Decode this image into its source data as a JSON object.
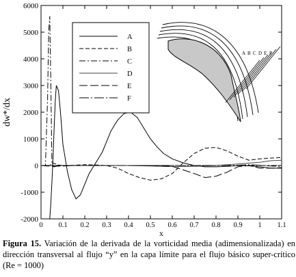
{
  "chart_data": {
    "type": "line",
    "xlabel": "x",
    "ylabel": "dw*/dx",
    "xlim": [
      0,
      1.1
    ],
    "ylim": [
      -2000,
      6000
    ],
    "x_ticks": [
      "0",
      "0.1",
      "0.2",
      "0.3",
      "0.4",
      "0.5",
      "0.6",
      "0.7",
      "0.8",
      "0.9",
      "1",
      "1.1"
    ],
    "y_ticks": [
      "-2000",
      "-1000",
      "0",
      "1000",
      "2000",
      "3000",
      "4000",
      "5000",
      "6000"
    ],
    "legend_position": "top-left",
    "inset_labels": [
      "A",
      "B",
      "C",
      "D",
      "E",
      "F"
    ],
    "series": [
      {
        "name": "A",
        "color": "#000000",
        "dash": "",
        "x": [
          0.04,
          0.045,
          0.05,
          0.055,
          0.06,
          0.065,
          0.07,
          0.08,
          0.09,
          0.1,
          0.12,
          0.14,
          0.16,
          0.18,
          0.2,
          0.22,
          0.25,
          0.28,
          0.3,
          0.32,
          0.35,
          0.38,
          0.41,
          0.44,
          0.47,
          0.5,
          0.53,
          0.56,
          0.6,
          0.65,
          0.7,
          0.75,
          0.8,
          0.85,
          0.9,
          0.95,
          1.0,
          1.05,
          1.1
        ],
        "y": [
          -2000,
          -1400,
          -600,
          300,
          1400,
          2400,
          3000,
          2800,
          1900,
          800,
          -200,
          -900,
          -1250,
          -1100,
          -700,
          -300,
          100,
          500,
          900,
          1300,
          1700,
          1950,
          2000,
          1800,
          1400,
          1000,
          700,
          450,
          250,
          100,
          0,
          -50,
          -50,
          -30,
          0,
          -10,
          -50,
          -100,
          -100
        ]
      },
      {
        "name": "B",
        "color": "#000000",
        "dash": "6,3",
        "x": [
          0.0,
          0.04,
          0.05,
          0.06,
          0.08,
          0.1,
          0.15,
          0.2,
          0.25,
          0.3,
          0.35,
          0.4,
          0.45,
          0.5,
          0.55,
          0.6,
          0.65,
          0.7,
          0.75,
          0.8,
          0.85,
          0.9,
          0.95,
          1.0,
          1.05,
          1.1
        ],
        "y": [
          0,
          0,
          100,
          80,
          20,
          0,
          10,
          30,
          20,
          0,
          -100,
          -300,
          -450,
          -550,
          -500,
          -300,
          100,
          450,
          650,
          680,
          550,
          350,
          200,
          250,
          280,
          300
        ]
      },
      {
        "name": "C",
        "color": "#000000",
        "dash": "9,3,2,3",
        "x": [
          0.0,
          0.02,
          0.03,
          0.035,
          0.04,
          0.045,
          0.05,
          0.06,
          0.08,
          0.1,
          0.2,
          0.4,
          0.6,
          0.8,
          1.0,
          1.1
        ],
        "y": [
          0,
          0,
          2500,
          5000,
          5600,
          3000,
          0,
          -50,
          0,
          0,
          0,
          0,
          0,
          0,
          0,
          0
        ]
      },
      {
        "name": "D",
        "color": "#444444",
        "dash": "",
        "x": [
          0.0,
          0.1,
          0.2,
          0.3,
          0.4,
          0.5,
          0.6,
          0.7,
          0.8,
          0.9,
          1.0,
          1.05,
          1.1
        ],
        "y": [
          0,
          0,
          0,
          0,
          0,
          -20,
          -40,
          -30,
          0,
          60,
          120,
          180,
          200
        ]
      },
      {
        "name": "E",
        "color": "#000000",
        "dash": "12,4",
        "x": [
          0.0,
          0.05,
          0.1,
          0.15,
          0.2,
          0.3,
          0.4,
          0.5,
          0.6,
          0.7,
          0.75,
          0.8,
          0.85,
          0.9,
          0.95,
          1.0,
          1.05,
          1.1
        ],
        "y": [
          0,
          -30,
          -20,
          0,
          0,
          0,
          0,
          0,
          -30,
          -300,
          -450,
          -400,
          -250,
          -50,
          0,
          -100,
          -100,
          -80
        ]
      },
      {
        "name": "F",
        "color": "#000000",
        "dash": "14,3,2,3",
        "x": [
          0.0,
          0.1,
          0.3,
          0.5,
          0.7,
          0.85,
          0.9,
          0.95,
          1.0,
          1.05,
          1.1
        ],
        "y": [
          0,
          0,
          0,
          0,
          0,
          0,
          10,
          30,
          10,
          -20,
          -30
        ]
      }
    ]
  },
  "caption": {
    "label": "Figura 15.",
    "text": " Variación de la derivada de la vorticidad media (adimensionalizada) en dirección transversal al flujo “y” en la capa límite para el flujo básico super-crítico (Re = 1000)"
  }
}
